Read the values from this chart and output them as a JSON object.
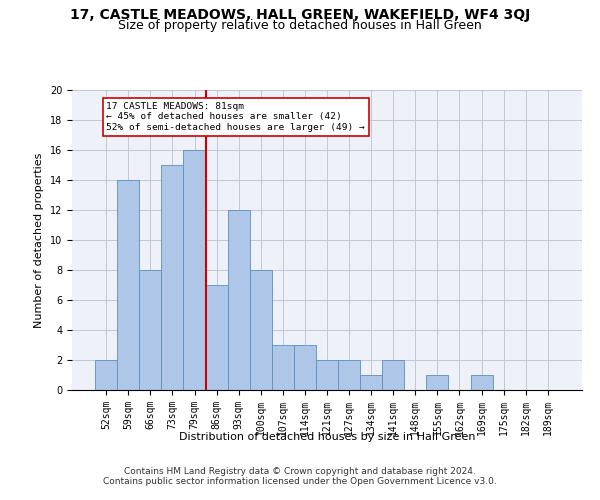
{
  "title": "17, CASTLE MEADOWS, HALL GREEN, WAKEFIELD, WF4 3QJ",
  "subtitle": "Size of property relative to detached houses in Hall Green",
  "xlabel": "Distribution of detached houses by size in Hall Green",
  "ylabel": "Number of detached properties",
  "footnote1": "Contains HM Land Registry data © Crown copyright and database right 2024.",
  "footnote2": "Contains public sector information licensed under the Open Government Licence v3.0.",
  "annotation_line1": "17 CASTLE MEADOWS: 81sqm",
  "annotation_line2": "← 45% of detached houses are smaller (42)",
  "annotation_line3": "52% of semi-detached houses are larger (49) →",
  "bar_labels": [
    "52sqm",
    "59sqm",
    "66sqm",
    "73sqm",
    "79sqm",
    "86sqm",
    "93sqm",
    "100sqm",
    "107sqm",
    "114sqm",
    "121sqm",
    "127sqm",
    "134sqm",
    "141sqm",
    "148sqm",
    "155sqm",
    "162sqm",
    "169sqm",
    "175sqm",
    "182sqm",
    "189sqm"
  ],
  "bar_values": [
    2,
    14,
    8,
    15,
    16,
    7,
    12,
    8,
    3,
    3,
    2,
    2,
    1,
    2,
    0,
    1,
    0,
    1,
    0,
    0,
    0
  ],
  "bar_color": "#aec6e8",
  "bar_edge_color": "#5a8fc2",
  "vline_x": 4.5,
  "vline_color": "#cc0000",
  "ylim": [
    0,
    20
  ],
  "yticks": [
    0,
    2,
    4,
    6,
    8,
    10,
    12,
    14,
    16,
    18,
    20
  ],
  "grid_color": "#c0c8d8",
  "background_color": "#eef2f8",
  "title_fontsize": 10,
  "subtitle_fontsize": 9,
  "axis_label_fontsize": 8,
  "tick_fontsize": 7,
  "footnote_fontsize": 6.5
}
